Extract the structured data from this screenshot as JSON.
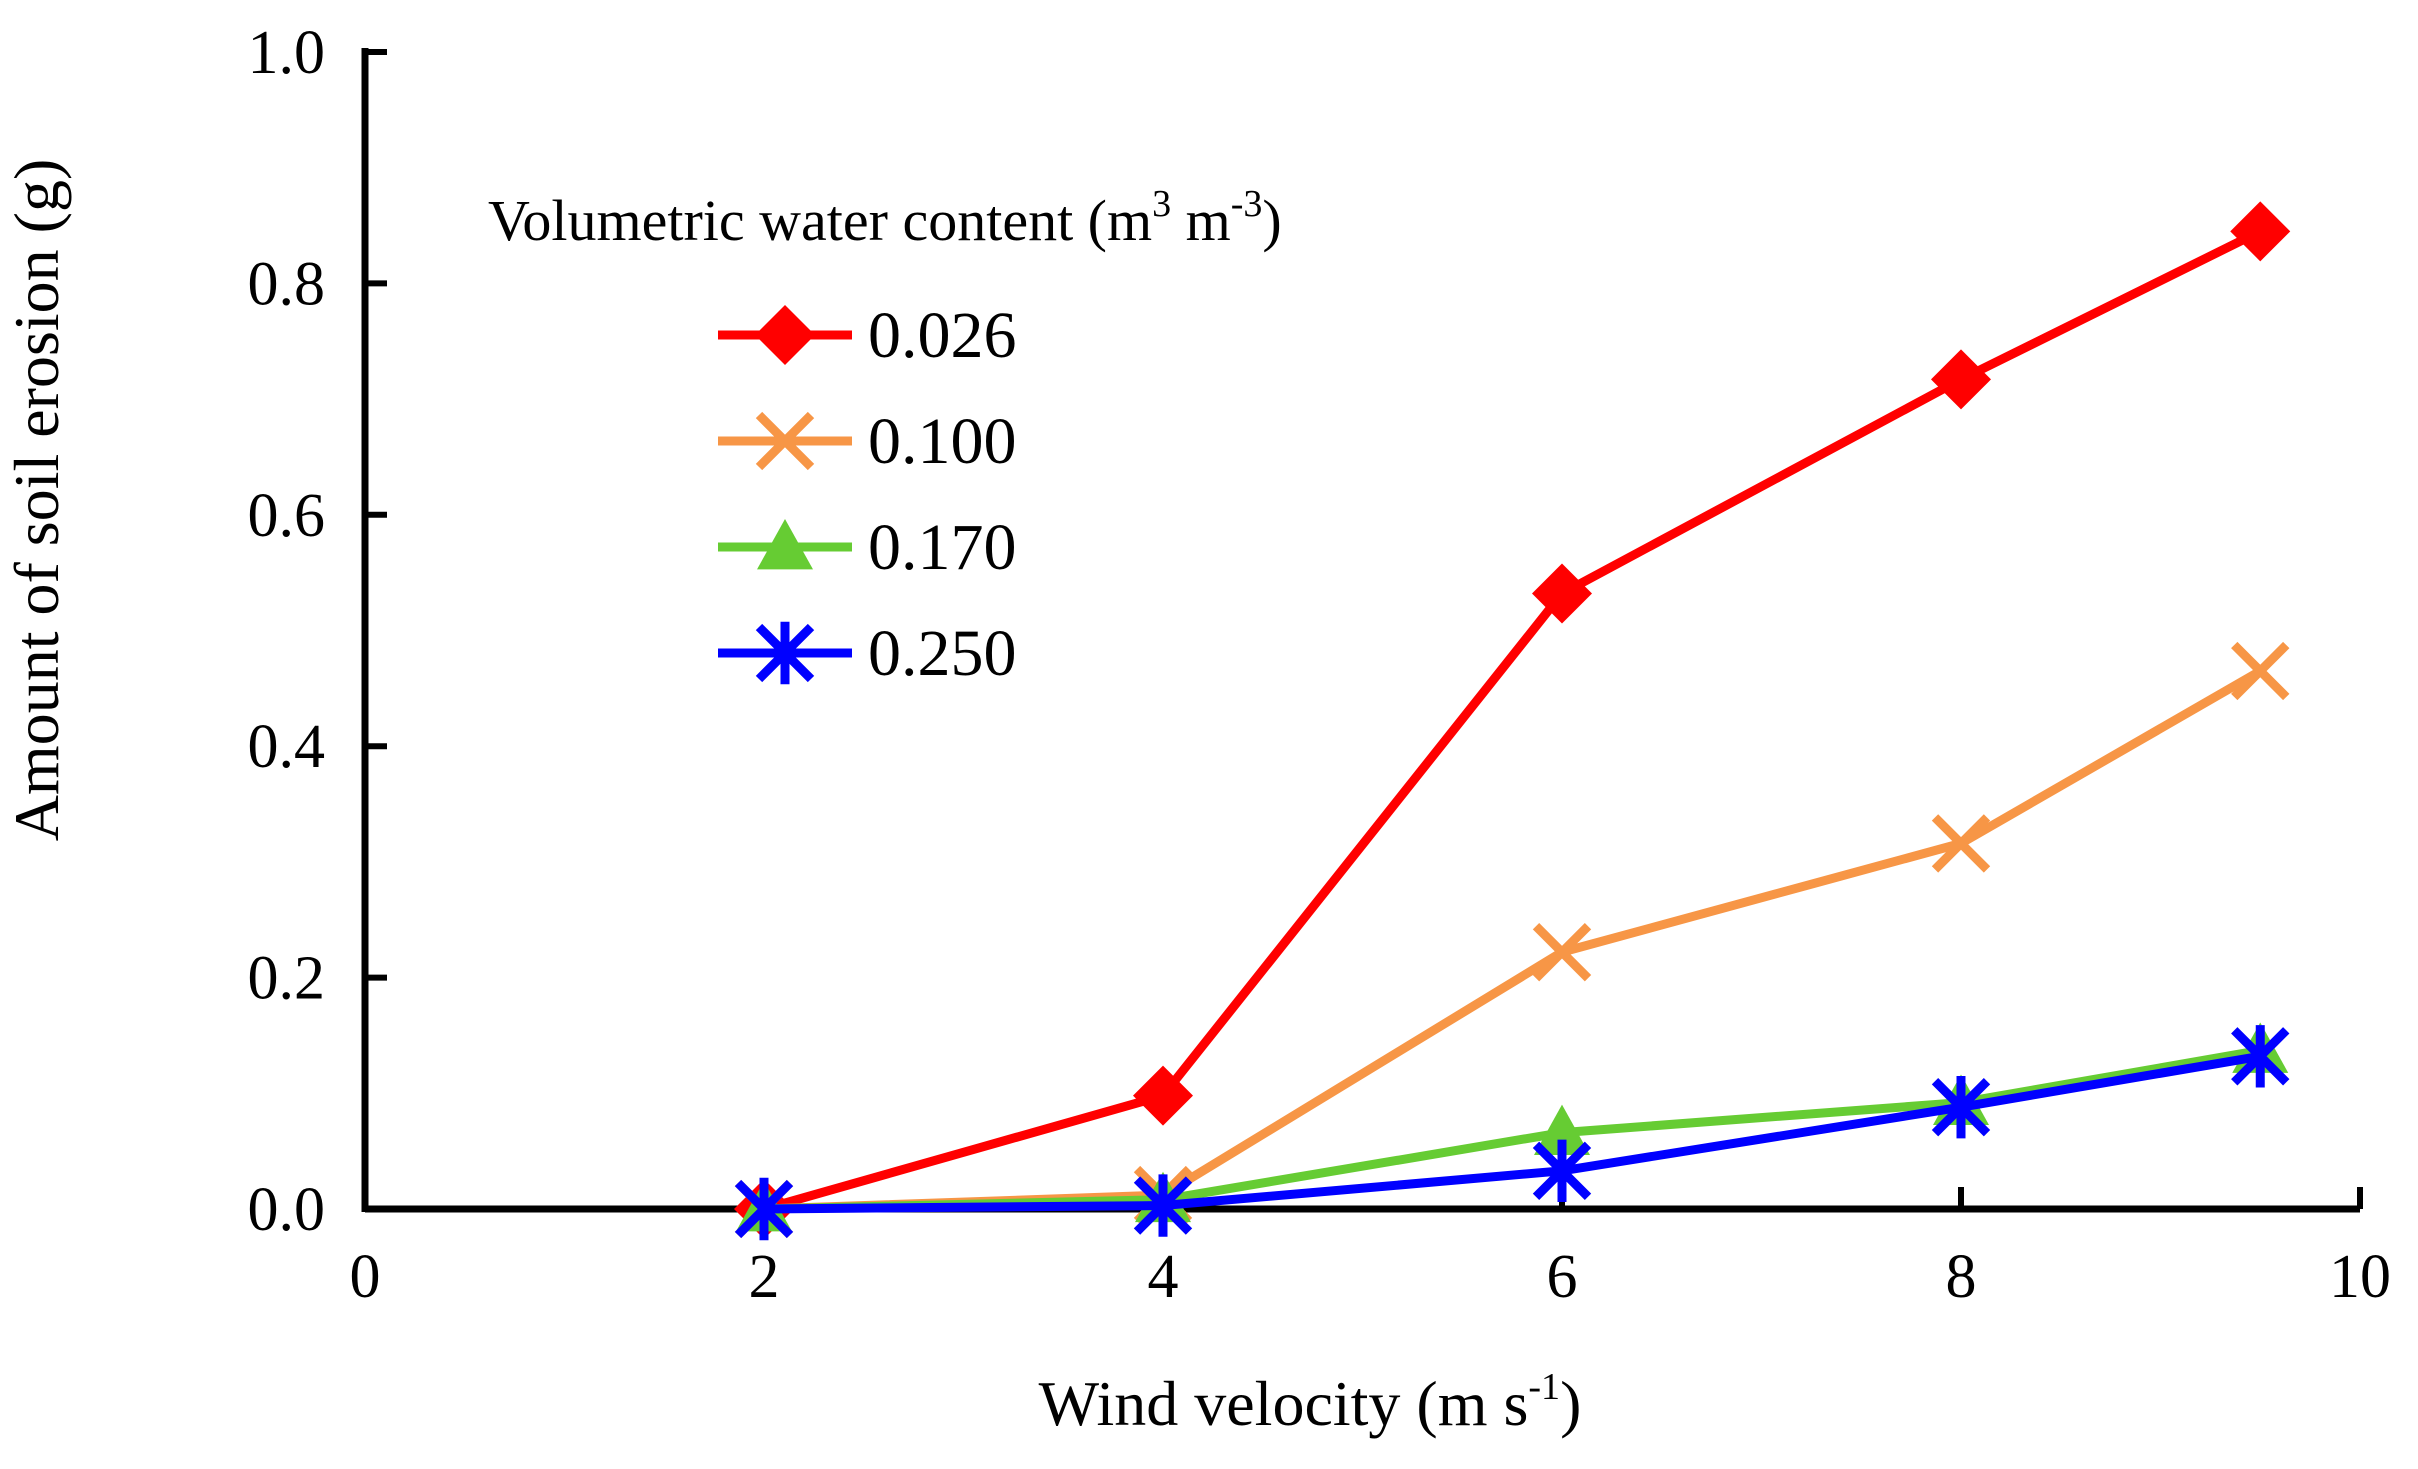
{
  "chart_data": {
    "type": "line",
    "title": "",
    "xlabel": {
      "main": "Wind velocity (m s",
      "sup": "-1",
      "tail": ")"
    },
    "ylabel": "Amount of soil erosion (g)",
    "xlim": [
      0,
      10
    ],
    "ylim": [
      0,
      1.0
    ],
    "x_ticks": [
      "0",
      "2",
      "4",
      "6",
      "8",
      "10"
    ],
    "y_ticks": [
      "0.0",
      "0.2",
      "0.4",
      "0.6",
      "0.8",
      "1.0"
    ],
    "grid": false,
    "legend": {
      "position": "top-left",
      "title": {
        "main": "Volumetric  water content (m",
        "sup1": "3",
        "mid": " m",
        "sup2": "-3",
        "tail": ")"
      }
    },
    "series": [
      {
        "name": "0.026",
        "color": "#ff0000",
        "marker": "diamond",
        "x": [
          2,
          4,
          6,
          8,
          9.5
        ],
        "y": [
          0.0,
          0.098,
          0.532,
          0.717,
          0.845
        ]
      },
      {
        "name": "0.100",
        "color": "#f79646",
        "marker": "x",
        "x": [
          2,
          4,
          6,
          8,
          9.5
        ],
        "y": [
          0.0,
          0.012,
          0.222,
          0.316,
          0.465
        ]
      },
      {
        "name": "0.170",
        "color": "#66cc33",
        "marker": "triangle",
        "x": [
          2,
          4,
          6,
          8,
          9.5
        ],
        "y": [
          0.0,
          0.008,
          0.066,
          0.092,
          0.137
        ]
      },
      {
        "name": "0.250",
        "color": "#0000ff",
        "marker": "star",
        "x": [
          2,
          4,
          6,
          8,
          9.5
        ],
        "y": [
          0.0,
          0.003,
          0.033,
          0.088,
          0.132
        ]
      }
    ]
  }
}
